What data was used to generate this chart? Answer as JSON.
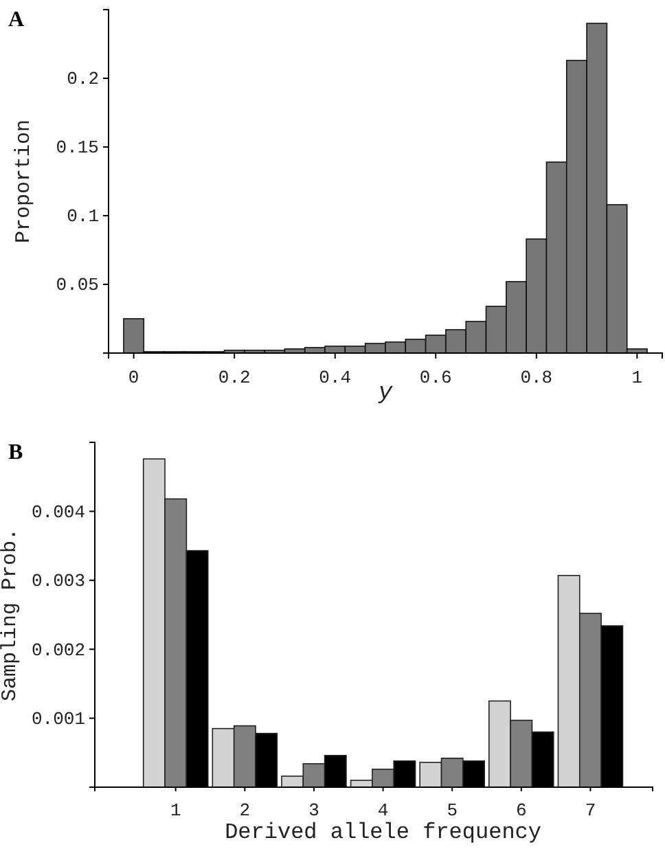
{
  "chart_data": [
    {
      "type": "histogram",
      "title": "A",
      "xlabel": "y",
      "ylabel": "Proportion",
      "color": "#777777",
      "bins": [
        -0.02,
        0.02,
        0.06,
        0.1,
        0.14,
        0.18,
        0.22,
        0.26,
        0.3,
        0.34,
        0.38,
        0.42,
        0.46,
        0.5,
        0.54,
        0.58,
        0.62,
        0.66,
        0.7,
        0.74,
        0.78,
        0.82,
        0.86,
        0.9,
        0.94,
        0.98,
        1.02
      ],
      "values": [
        0.025,
        0.001,
        0.001,
        0.001,
        0.001,
        0.002,
        0.002,
        0.002,
        0.003,
        0.004,
        0.005,
        0.005,
        0.007,
        0.008,
        0.01,
        0.013,
        0.017,
        0.023,
        0.034,
        0.052,
        0.083,
        0.139,
        0.213,
        0.24,
        0.108,
        0.003
      ],
      "xlim": [
        -0.05,
        1.05
      ],
      "xticks": [
        0,
        0.2,
        0.4,
        0.6,
        0.8,
        1
      ],
      "ylim": [
        0,
        0.25
      ],
      "yticks": [
        0.05,
        0.1,
        0.15,
        0.2
      ]
    },
    {
      "type": "bar",
      "title": "B",
      "xlabel": "Derived allele frequency",
      "ylabel": "Sampling Prob.",
      "categories": [
        "1",
        "2",
        "3",
        "4",
        "5",
        "6",
        "7"
      ],
      "series": [
        {
          "color": "#d3d3d3",
          "values": [
            0.00476,
            0.00085,
            0.00016,
            0.0001,
            0.00036,
            0.00125,
            0.00307
          ]
        },
        {
          "color": "#808080",
          "values": [
            0.00418,
            0.00089,
            0.00034,
            0.00026,
            0.00042,
            0.00097,
            0.00252
          ]
        },
        {
          "color": "#000000",
          "values": [
            0.00343,
            0.00078,
            0.00046,
            0.00038,
            0.00038,
            0.0008,
            0.00234
          ]
        }
      ],
      "ylim": [
        0,
        0.005
      ],
      "yticks": [
        0.001,
        0.002,
        0.003,
        0.004
      ]
    }
  ]
}
